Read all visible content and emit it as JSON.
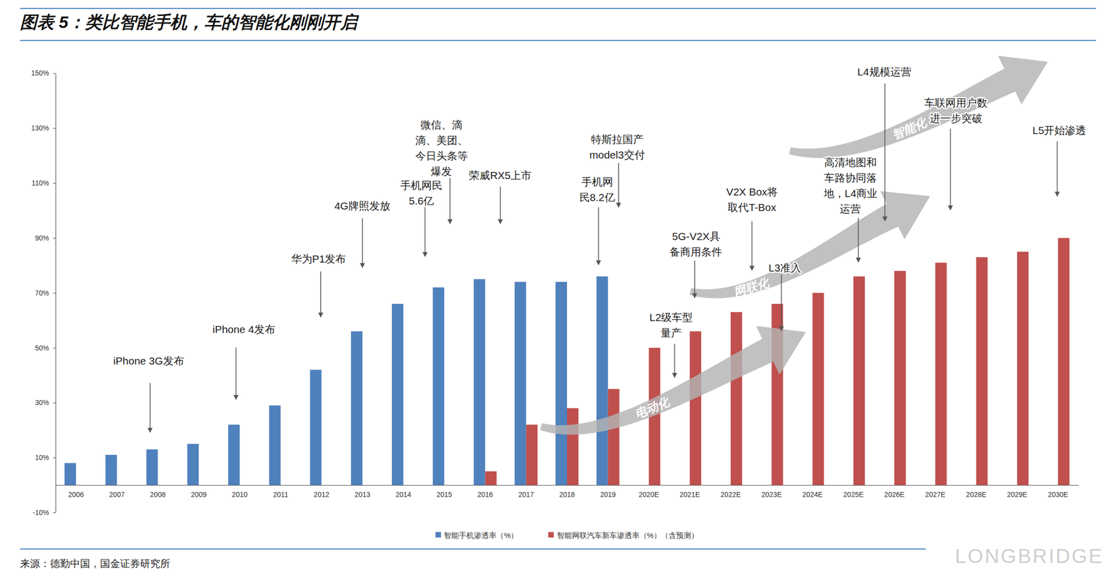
{
  "chart_data": {
    "type": "bar",
    "title": "图表 5：类比智能手机，车的智能化刚刚开启",
    "categories": [
      "2006",
      "2007",
      "2008",
      "2009",
      "2010",
      "2011",
      "2012",
      "2013",
      "2014",
      "2015",
      "2016",
      "2017",
      "2018",
      "2019",
      "2020E",
      "2021E",
      "2022E",
      "2023E",
      "2024E",
      "2025E",
      "2026E",
      "2027E",
      "2028E",
      "2029E",
      "2030E"
    ],
    "series": [
      {
        "name": "智能手机渗透率（%）",
        "color": "#4f81bd",
        "values": [
          8,
          11,
          13,
          15,
          22,
          29,
          42,
          56,
          66,
          72,
          75,
          74,
          74,
          76,
          null,
          null,
          null,
          null,
          null,
          null,
          null,
          null,
          null,
          null,
          null
        ]
      },
      {
        "name": "智能网联汽车新车渗透率（%）（含预测）",
        "color": "#c0504d",
        "values": [
          null,
          null,
          null,
          null,
          null,
          null,
          null,
          null,
          null,
          null,
          5,
          22,
          28,
          35,
          50,
          56,
          63,
          66,
          70,
          76,
          78,
          81,
          83,
          85,
          90
        ]
      }
    ],
    "ylim": [
      -10,
      150
    ],
    "yticks": [
      {
        "value": -10,
        "label": "-10%"
      },
      {
        "value": 10,
        "label": "10%"
      },
      {
        "value": 30,
        "label": "30%"
      },
      {
        "value": 50,
        "label": "50%"
      },
      {
        "value": 70,
        "label": "70%"
      },
      {
        "value": 90,
        "label": "90%"
      },
      {
        "value": 110,
        "label": "110%"
      },
      {
        "value": 130,
        "label": "130%"
      },
      {
        "value": 150,
        "label": "150%"
      }
    ],
    "grid": false,
    "legend": "bottom",
    "annotations": [
      {
        "text": "iPhone 3G发布",
        "x": "2008",
        "y": 19
      },
      {
        "text": "iPhone 4发布",
        "x": "2010",
        "y": 31
      },
      {
        "text": "华为P1发布",
        "x": "2012",
        "y": 61
      },
      {
        "text": "4G牌照发放",
        "x": "2013",
        "y": 79
      },
      {
        "text": "手机网民\n5.6亿",
        "x": "2015",
        "y": 83
      },
      {
        "text": "微信、滴\n滴、美团、\n今日头条等\n爆发",
        "x": "2015",
        "y": 95
      },
      {
        "text": "荣威RX5上市",
        "x": "2016",
        "y": 95
      },
      {
        "text": "手机网\n民8.2亿",
        "x": "2019",
        "y": 80
      },
      {
        "text": "特斯拉国产\nmodel3交付",
        "x": "2019",
        "y": 101
      },
      {
        "text": "L2级车型\n量产",
        "x": "2021E",
        "y": 39
      },
      {
        "text": "5G-V2X具\n备商用条件",
        "x": "2021E",
        "y": 68
      },
      {
        "text": "V2X Box将\n取代T-Box",
        "x": "2022E",
        "y": 78
      },
      {
        "text": "L3准入",
        "x": "2023E",
        "y": 56
      },
      {
        "text": "高清地图和\n车路协同落\n地，L4商业\n运营",
        "x": "2025E",
        "y": 81
      },
      {
        "text": "L4规模运营",
        "x": "2026E",
        "y": 96
      },
      {
        "text": "车联网用户数\n进一步突破",
        "x": "2027E",
        "y": 100
      },
      {
        "text": "L5开始渗透",
        "x": "2030E",
        "y": 105
      }
    ],
    "trends": [
      "电动化",
      "网联化",
      "智能化"
    ],
    "source": "来源：德勤中国，国金证券研究所",
    "watermark": "LONGBRIDGE"
  }
}
